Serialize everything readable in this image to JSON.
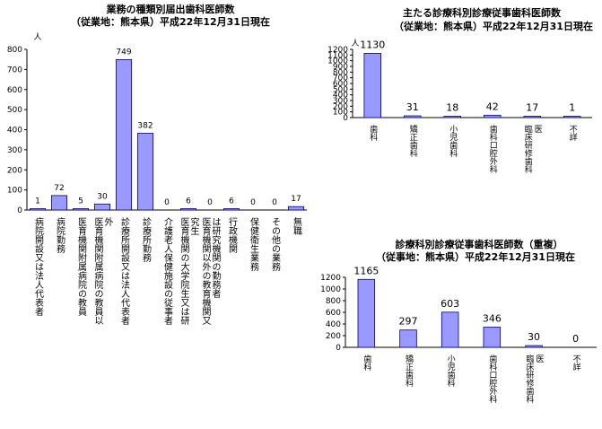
{
  "colors": {
    "bar_fill": "#9999ff",
    "bar_stroke": "#000080",
    "axis": "#000000"
  },
  "chart_data": [
    {
      "type": "bar",
      "title": "業務の種類別届出歯科医師数",
      "subtitle": "（従業地：熊本県）平成22年12月31日現在",
      "unit": "人",
      "ylim": [
        0,
        800
      ],
      "yticks": [
        0,
        100,
        200,
        300,
        400,
        500,
        600,
        700,
        800
      ],
      "categories": [
        "病院開設又は法人代表者",
        "病院勤務",
        "医育機関附属病院の教員",
        "医育機関附属病院の教員以外",
        "診療所開設又は法人代表者",
        "診療所勤務",
        "介護老人保健施設の従事者",
        "医育機関の大学院生又は研究生",
        "医育機関以外の教育機関又は研究機関の勤務者",
        "行政機関",
        "保健衛生業務",
        "その他の業務",
        "無職"
      ],
      "values": [
        1,
        72,
        5,
        30,
        749,
        382,
        0,
        6,
        0,
        6,
        0,
        0,
        17
      ]
    },
    {
      "type": "bar",
      "title": "主たる診療科別診療従事歯科医師数",
      "subtitle": "（従業地：熊本県）平成22年12月31日現在",
      "unit": "人",
      "ylim": [
        0,
        1200
      ],
      "yticks": [
        0,
        100,
        200,
        300,
        400,
        500,
        600,
        700,
        800,
        900,
        1000,
        1100,
        1200
      ],
      "categories": [
        "歯科",
        "矯正歯科",
        "小児歯科",
        "歯科口腔外科",
        "臨床研修歯科医",
        "不詳"
      ],
      "values": [
        1130,
        31,
        18,
        42,
        17,
        1
      ]
    },
    {
      "type": "bar",
      "title": "診療科別診療従事歯科医師数（重複）",
      "subtitle": "（従事地：熊本県）平成22年12月31日現在",
      "ylim": [
        0,
        1200
      ],
      "yticks": [
        0,
        200,
        400,
        600,
        800,
        1000,
        1200
      ],
      "categories": [
        "歯科",
        "矯正歯科",
        "小児歯科",
        "歯科口腔外科",
        "臨床研修歯科医",
        "不詳"
      ],
      "values": [
        1165,
        297,
        603,
        346,
        30,
        0
      ]
    }
  ]
}
